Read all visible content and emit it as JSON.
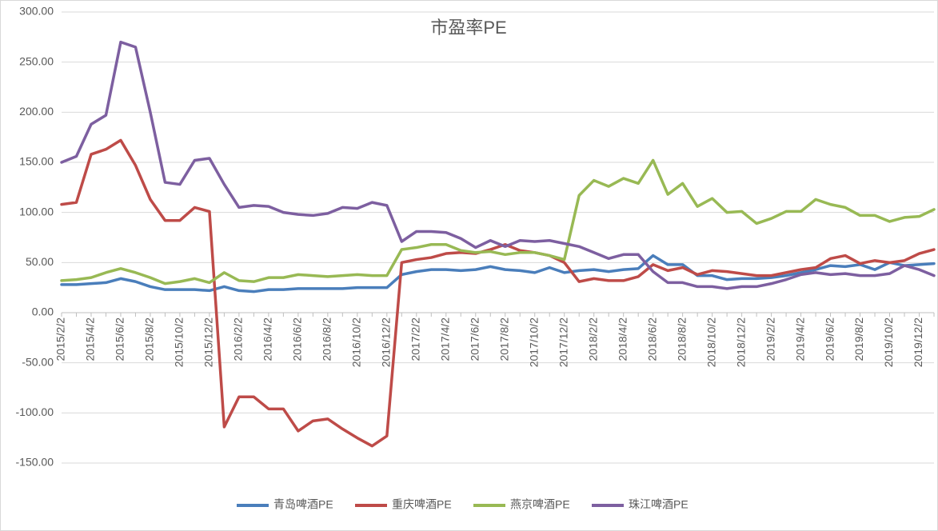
{
  "chart_data": {
    "type": "line",
    "title": "市盈率PE",
    "categories": [
      "2015/2/2",
      null,
      "2015/4/2",
      null,
      "2015/6/2",
      null,
      "2015/8/2",
      null,
      "2015/10/2",
      null,
      "2015/12/2",
      null,
      "2016/2/2",
      null,
      "2016/4/2",
      null,
      "2016/6/2",
      null,
      "2016/8/2",
      null,
      "2016/10/2",
      null,
      "2016/12/2",
      null,
      "2017/2/2",
      null,
      "2017/4/2",
      null,
      "2017/6/2",
      null,
      "2017/8/2",
      null,
      "2017/10/2",
      null,
      "2017/12/2",
      null,
      "2018/2/2",
      null,
      "2018/4/2",
      null,
      "2018/6/2",
      null,
      "2018/8/2",
      null,
      "2018/10/2",
      null,
      "2018/12/2",
      null,
      "2019/2/2",
      null,
      "2019/4/2",
      null,
      "2019/6/2",
      null,
      "2019/8/2",
      null,
      "2019/10/2",
      null,
      "2019/12/2",
      null
    ],
    "series": [
      {
        "name": "青岛啤酒PE",
        "color": "#4a7ebb",
        "values": [
          28,
          28,
          29,
          30,
          34,
          31,
          26,
          23,
          23,
          23,
          22,
          26,
          22,
          21,
          23,
          23,
          24,
          24,
          24,
          24,
          25,
          25,
          25,
          38,
          41,
          43,
          43,
          42,
          43,
          46,
          43,
          42,
          40,
          45,
          40,
          42,
          43,
          41,
          43,
          44,
          57,
          48,
          48,
          37,
          37,
          33,
          34,
          34,
          35,
          37,
          40,
          43,
          47,
          46,
          48,
          43,
          50,
          47,
          48,
          49
        ]
      },
      {
        "name": "重庆啤酒PE",
        "color": "#be4b48",
        "values": [
          108,
          110,
          158,
          163,
          172,
          147,
          113,
          92,
          92,
          105,
          101,
          -114,
          -84,
          -84,
          -96,
          -96,
          -118,
          -108,
          -106,
          -116,
          -125,
          -133,
          -123,
          50,
          53,
          55,
          59,
          60,
          59,
          63,
          68,
          62,
          60,
          57,
          50,
          31,
          34,
          32,
          32,
          36,
          48,
          42,
          45,
          38,
          42,
          41,
          39,
          37,
          37,
          40,
          43,
          45,
          54,
          57,
          49,
          52,
          50,
          52,
          59,
          63
        ]
      },
      {
        "name": "燕京啤酒PE",
        "color": "#98b954",
        "values": [
          32,
          33,
          35,
          40,
          44,
          40,
          35,
          29,
          31,
          34,
          30,
          40,
          32,
          31,
          35,
          35,
          38,
          37,
          36,
          37,
          38,
          37,
          37,
          63,
          65,
          68,
          68,
          62,
          60,
          61,
          58,
          60,
          60,
          57,
          53,
          117,
          132,
          126,
          134,
          129,
          152,
          118,
          129,
          106,
          114,
          100,
          101,
          89,
          94,
          101,
          101,
          113,
          108,
          105,
          97,
          97,
          91,
          95,
          96,
          103
        ]
      },
      {
        "name": "珠江啤酒PE",
        "color": "#7d5fa0",
        "values": [
          150,
          156,
          188,
          197,
          270,
          265,
          200,
          130,
          128,
          152,
          154,
          128,
          105,
          107,
          106,
          100,
          98,
          97,
          99,
          105,
          104,
          110,
          107,
          71,
          81,
          81,
          80,
          74,
          65,
          72,
          66,
          72,
          71,
          72,
          69,
          66,
          60,
          54,
          58,
          58,
          41,
          30,
          30,
          26,
          26,
          24,
          26,
          26,
          29,
          33,
          38,
          40,
          38,
          39,
          37,
          37,
          39,
          47,
          43,
          37
        ]
      }
    ],
    "ylim": [
      -150,
      300
    ],
    "yticks": [
      {
        "value": -150,
        "label": "-150.00"
      },
      {
        "value": -100,
        "label": "-100.00"
      },
      {
        "value": -50,
        "label": "-50.00"
      },
      {
        "value": 0,
        "label": "0.00"
      },
      {
        "value": 50,
        "label": "50.00"
      },
      {
        "value": 100,
        "label": "100.00"
      },
      {
        "value": 150,
        "label": "150.00"
      },
      {
        "value": 200,
        "label": "200.00"
      },
      {
        "value": 250,
        "label": "250.00"
      },
      {
        "value": 300,
        "label": "300.00"
      }
    ],
    "grid": true,
    "legend": "bottom"
  }
}
